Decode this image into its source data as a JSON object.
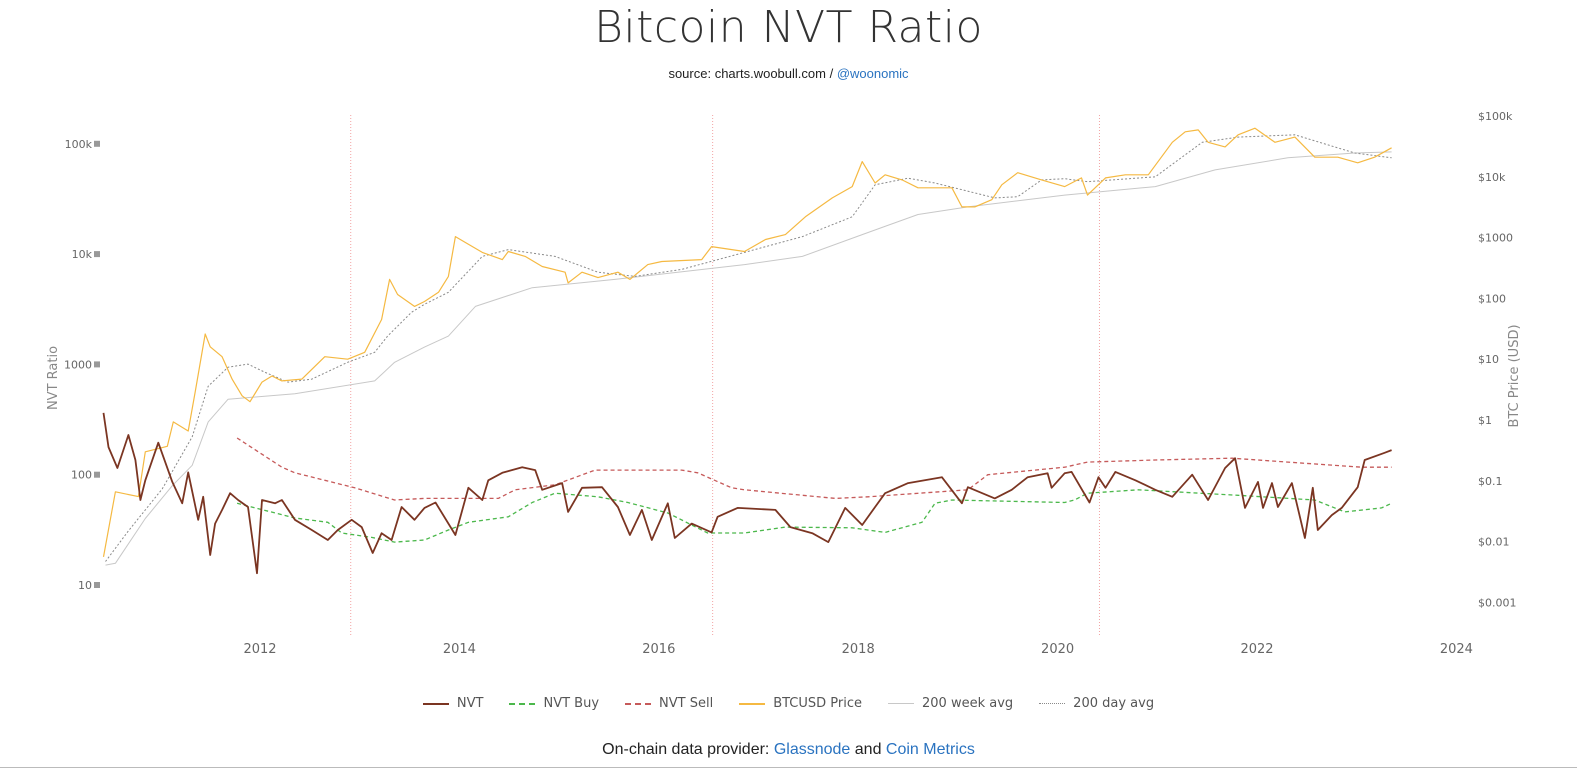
{
  "title": "Bitcoin NVT Ratio",
  "subtitle": {
    "prefix": "source: charts.woobull.com / ",
    "link": "@woonomic"
  },
  "footer": {
    "prefix": "On-chain data provider: ",
    "link1": "Glassnode",
    "middle": " and ",
    "link2": "Coin Metrics"
  },
  "colors": {
    "nvt": "#7b3522",
    "nvt_buy": "#4cb84c",
    "nvt_sell": "#c65a5a",
    "price": "#f5b942",
    "week200": "#c8c8c8",
    "day200": "#8a8a8a",
    "halving": "#f2a3a3",
    "link": "#2a73c0"
  },
  "chart_data": {
    "type": "line",
    "title": "Bitcoin NVT Ratio",
    "xlabel": "",
    "x_ticks": [
      "2012",
      "2014",
      "2016",
      "2018",
      "2020",
      "2022",
      "2024"
    ],
    "xlim": [
      2010.4,
      2024
    ],
    "left_axis": {
      "label": "NVT Ratio",
      "scale": "log",
      "ylim": [
        10,
        100000
      ],
      "ticks": [
        "10",
        "100",
        "1000",
        "10k",
        "100k"
      ],
      "tick_values": [
        10,
        100,
        1000,
        10000,
        100000
      ]
    },
    "right_axis": {
      "label": "BTC Price (USD)",
      "scale": "log",
      "ylim": [
        0.001,
        100000
      ],
      "ticks": [
        "$100k",
        "$10k",
        "$1000",
        "$100",
        "$10",
        "$1",
        "$0.1",
        "$0.01",
        "$0.001"
      ],
      "tick_values": [
        100000,
        10000,
        1000,
        100,
        10,
        1,
        0.1,
        0.01,
        0.001
      ]
    },
    "grid": false,
    "legend": "bottom",
    "vertical_markers": [
      2012.91,
      2016.54,
      2020.42
    ],
    "series": [
      {
        "key": "nvt",
        "name": "NVT",
        "axis": "left",
        "style": "solid",
        "x": [
          2010.43,
          2010.48,
          2010.57,
          2010.68,
          2010.75,
          2010.8,
          2010.85,
          2010.98,
          2011.12,
          2011.22,
          2011.28,
          2011.38,
          2011.43,
          2011.5,
          2011.55,
          2011.62,
          2011.7,
          2011.78,
          2011.88,
          2011.97,
          2012.02,
          2012.15,
          2012.22,
          2012.35,
          2012.52,
          2012.68,
          2012.78,
          2012.92,
          2013.02,
          2013.13,
          2013.22,
          2013.32,
          2013.42,
          2013.55,
          2013.65,
          2013.76,
          2013.96,
          2014.09,
          2014.23,
          2014.29,
          2014.43,
          2014.63,
          2014.76,
          2014.83,
          2015.03,
          2015.09,
          2015.23,
          2015.43,
          2015.59,
          2015.71,
          2015.83,
          2015.93,
          2016.09,
          2016.16,
          2016.33,
          2016.53,
          2016.59,
          2016.79,
          2017.17,
          2017.32,
          2017.54,
          2017.7,
          2017.87,
          2018.04,
          2018.17,
          2018.27,
          2018.5,
          2018.84,
          2019.04,
          2019.1,
          2019.37,
          2019.54,
          2019.7,
          2019.9,
          2019.94,
          2020.07,
          2020.14,
          2020.32,
          2020.41,
          2020.48,
          2020.58,
          2020.78,
          2020.98,
          2021.15,
          2021.35,
          2021.51,
          2021.68,
          2021.78,
          2021.88,
          2022.01,
          2022.06,
          2022.15,
          2022.21,
          2022.35,
          2022.48,
          2022.56,
          2022.61,
          2022.75,
          2022.85,
          2023.01,
          2023.08,
          2023.28,
          2023.35
        ],
        "y": [
          363,
          178,
          115,
          229,
          136,
          59,
          89,
          195,
          86,
          55,
          105,
          39,
          63,
          18.7,
          36,
          48,
          68,
          59,
          51,
          12.8,
          59,
          55,
          59,
          39,
          31.5,
          25.6,
          31.5,
          39,
          33.5,
          19.5,
          29.5,
          25.6,
          51,
          39,
          50,
          56,
          28.4,
          76,
          59,
          89,
          104,
          117,
          110,
          73,
          84,
          46,
          76,
          77,
          51,
          28.4,
          48,
          25.6,
          55,
          26.7,
          36,
          30,
          41.5,
          50,
          48,
          33.5,
          29.5,
          24.5,
          50,
          35,
          51,
          68,
          84,
          95,
          55,
          77,
          61,
          73,
          95,
          103,
          76,
          103,
          106,
          56,
          95,
          76,
          106,
          89,
          73,
          63,
          100,
          59,
          115,
          141,
          50,
          86,
          50,
          84,
          51,
          84,
          26.7,
          76,
          31.5,
          43,
          50,
          77,
          136,
          158,
          167
        ]
      },
      {
        "key": "nvt_buy",
        "name": "NVT Buy",
        "axis": "left",
        "style": "dashed",
        "x": [
          2011.77,
          2012.35,
          2012.68,
          2012.82,
          2013.12,
          2013.35,
          2013.65,
          2013.89,
          2014.09,
          2014.49,
          2014.73,
          2014.96,
          2015.39,
          2015.69,
          2016.09,
          2016.49,
          2016.86,
          2017.27,
          2017.94,
          2018.27,
          2018.64,
          2018.77,
          2018.94,
          2020.07,
          2020.17,
          2020.3,
          2020.81,
          2021.81,
          2022.58,
          2022.88,
          2023.25,
          2023.35
        ],
        "y": [
          55,
          40.5,
          37,
          29.6,
          27,
          24.5,
          25.6,
          31.5,
          37,
          41.5,
          56,
          68,
          63,
          56,
          45,
          29.6,
          29.6,
          33.5,
          33,
          30,
          37,
          55,
          59,
          56,
          59,
          68,
          73,
          65,
          59,
          46,
          50,
          55
        ]
      },
      {
        "key": "nvt_sell",
        "name": "NVT Sell",
        "axis": "left",
        "style": "dashed",
        "x": [
          2011.77,
          2012.22,
          2012.35,
          2012.95,
          2013.35,
          2013.65,
          2014.39,
          2014.56,
          2014.96,
          2015.36,
          2016.23,
          2016.39,
          2016.73,
          2016.86,
          2017.77,
          2018.1,
          2019.1,
          2019.3,
          2020.07,
          2020.3,
          2020.98,
          2021.75,
          2022.31,
          2023.05,
          2023.35
        ],
        "y": [
          215,
          117,
          104,
          76,
          59,
          61,
          61,
          73,
          81,
          110,
          110,
          104,
          76,
          73,
          61,
          63,
          73,
          100,
          117,
          130,
          136,
          141,
          130,
          117,
          117
        ]
      },
      {
        "key": "price",
        "name": "BTCUSD Price",
        "axis": "right",
        "style": "solid",
        "x": [
          2010.43,
          2010.55,
          2010.78,
          2010.85,
          2011.07,
          2011.13,
          2011.28,
          2011.35,
          2011.45,
          2011.5,
          2011.62,
          2011.72,
          2011.82,
          2011.9,
          2012.02,
          2012.12,
          2012.22,
          2012.42,
          2012.65,
          2012.88,
          2013.05,
          2013.22,
          2013.3,
          2013.38,
          2013.55,
          2013.65,
          2013.79,
          2013.89,
          2013.96,
          2014.06,
          2014.23,
          2014.43,
          2014.49,
          2014.66,
          2014.83,
          2015.06,
          2015.09,
          2015.23,
          2015.39,
          2015.59,
          2015.71,
          2015.89,
          2016.03,
          2016.43,
          2016.53,
          2016.86,
          2017.07,
          2017.27,
          2017.47,
          2017.74,
          2017.94,
          2018.04,
          2018.17,
          2018.27,
          2018.44,
          2018.6,
          2018.94,
          2019.04,
          2019.17,
          2019.34,
          2019.44,
          2019.6,
          2019.84,
          2020.07,
          2020.24,
          2020.3,
          2020.48,
          2020.68,
          2020.91,
          2021.15,
          2021.28,
          2021.41,
          2021.51,
          2021.68,
          2021.81,
          2021.98,
          2022.18,
          2022.38,
          2022.58,
          2022.81,
          2023.01,
          2023.18,
          2023.35
        ],
        "y": [
          0.0056,
          0.066,
          0.055,
          0.3,
          0.37,
          0.93,
          0.66,
          2.9,
          26,
          16,
          11,
          4.7,
          2.5,
          2.0,
          4.2,
          5.3,
          4.4,
          4.7,
          11,
          10,
          13,
          45,
          205,
          116,
          74,
          89,
          126,
          230,
          1040,
          830,
          570,
          435,
          590,
          490,
          335,
          270,
          180,
          270,
          220,
          270,
          205,
          360,
          405,
          435,
          710,
          590,
          930,
          1120,
          2200,
          4500,
          6900,
          17800,
          7900,
          10800,
          8900,
          6600,
          6600,
          3200,
          3200,
          4200,
          7400,
          11700,
          8900,
          6900,
          9600,
          5000,
          9600,
          10800,
          10800,
          37000,
          55000,
          59000,
          37000,
          31000,
          49000,
          63000,
          37000,
          45000,
          21000,
          21000,
          17000,
          21000,
          30000
        ]
      },
      {
        "key": "week200",
        "name": "200 week avg",
        "axis": "right",
        "style": "solid",
        "x": [
          2010.45,
          2010.55,
          2010.85,
          2011.12,
          2011.32,
          2011.48,
          2011.68,
          2012.35,
          2013.15,
          2013.35,
          2013.65,
          2013.89,
          2014.16,
          2014.73,
          2015.56,
          2016.86,
          2017.44,
          2018.04,
          2018.6,
          2019.1,
          2020.07,
          2020.98,
          2021.58,
          2022.31,
          2022.98,
          2023.35
        ],
        "y": [
          0.0041,
          0.0044,
          0.024,
          0.083,
          0.18,
          0.93,
          2.2,
          2.7,
          4.4,
          8.9,
          15.8,
          24,
          74,
          150,
          205,
          360,
          490,
          1120,
          2400,
          3200,
          5000,
          6900,
          13000,
          20500,
          24600,
          25700
        ]
      },
      {
        "key": "day200",
        "name": "200 day avg",
        "axis": "right",
        "style": "dotted",
        "x": [
          2010.45,
          2010.68,
          2011.02,
          2011.32,
          2011.48,
          2011.68,
          2011.88,
          2012.05,
          2012.28,
          2012.52,
          2012.88,
          2013.15,
          2013.28,
          2013.52,
          2013.65,
          2013.89,
          2014.23,
          2014.49,
          2014.96,
          2015.39,
          2015.76,
          2016.23,
          2016.86,
          2017.44,
          2017.94,
          2018.17,
          2018.5,
          2018.77,
          2019.37,
          2019.6,
          2019.84,
          2020.07,
          2020.3,
          2020.98,
          2021.45,
          2021.81,
          2022.38,
          2022.98,
          2023.35
        ],
        "y": [
          0.0047,
          0.015,
          0.074,
          0.53,
          3.6,
          7.4,
          8.3,
          6.1,
          4.2,
          4.7,
          8.9,
          13,
          24,
          59,
          80,
          126,
          490,
          635,
          490,
          270,
          230,
          300,
          570,
          1040,
          2200,
          7400,
          9500,
          7900,
          4500,
          4700,
          8900,
          9300,
          8300,
          10000,
          37000,
          45000,
          49000,
          24600,
          20500
        ]
      }
    ]
  }
}
